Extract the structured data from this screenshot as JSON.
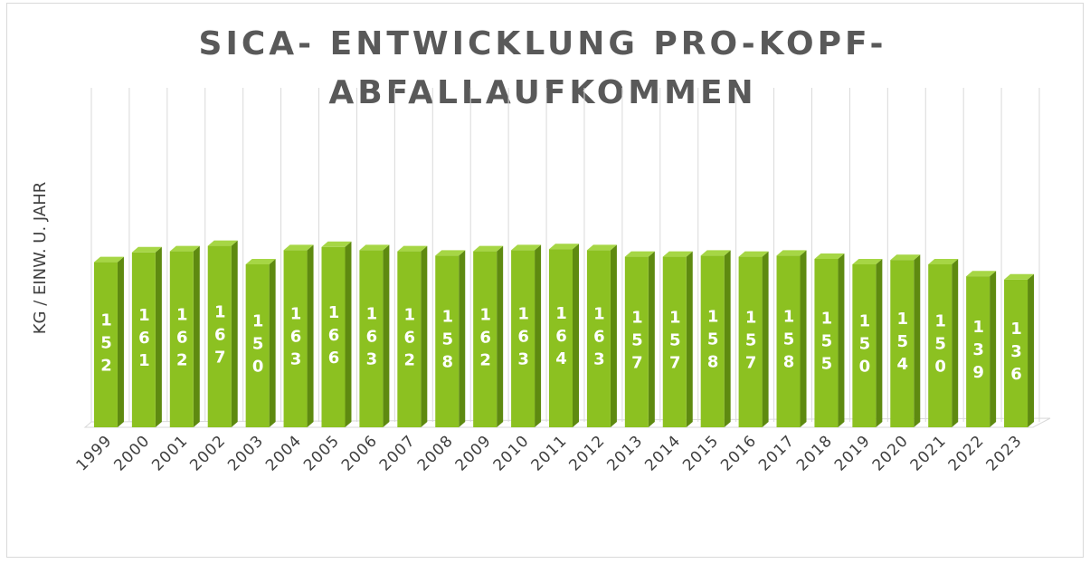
{
  "chart_data": {
    "type": "bar3d",
    "title": "SICA- ENTWICKLUNG PRO-KOPF-ABFALLAUFKOMMEN",
    "y_label": "KG / EINW. U. JAHR",
    "categories": [
      "1999",
      "2000",
      "2001",
      "2002",
      "2003",
      "2004",
      "2005",
      "2006",
      "2007",
      "2008",
      "2009",
      "2010",
      "2011",
      "2012",
      "2013",
      "2014",
      "2015",
      "2016",
      "2017",
      "2018",
      "2019",
      "2020",
      "2021",
      "2022",
      "2023"
    ],
    "values": [
      152,
      161,
      162,
      167,
      150,
      163,
      166,
      163,
      162,
      158,
      162,
      163,
      164,
      163,
      157,
      157,
      158,
      157,
      158,
      155,
      150,
      154,
      150,
      139,
      136
    ],
    "color": "#8cc121",
    "ylim": [
      0,
      300
    ],
    "grid": true
  }
}
